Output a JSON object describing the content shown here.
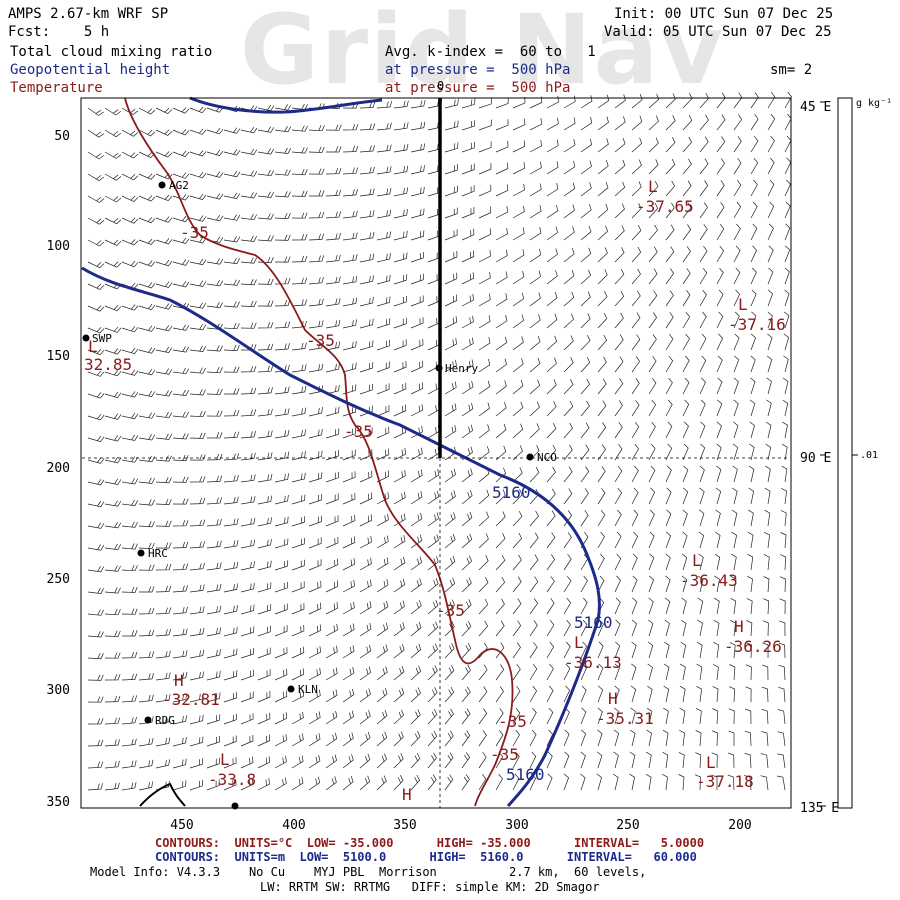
{
  "watermark": "Grid Nav",
  "header": {
    "model_line": "AMPS 2.67-km WRF SP",
    "fcst_line": "Fcst:    5 h",
    "init_line": "Init: 00 UTC Sun 07 Dec 25",
    "valid_line": "Valid: 05 UTC Sun 07 Dec 25",
    "field1": "Total cloud mixing ratio",
    "field2": "Geopotential height",
    "field3": "Temperature",
    "avg_line": "Avg. k-index =  60 to   1",
    "pressure_line1": "at pressure =  500 hPa",
    "pressure_line2": "at pressure =  500 hPa",
    "smoothing": "sm= 2"
  },
  "colors": {
    "height_contour": "#1c2a8a",
    "temperature_contour": "#8b1a1a",
    "barb": "#000000"
  },
  "axes": {
    "x_ticks": [
      "450",
      "400",
      "350",
      "300",
      "250",
      "200"
    ],
    "y_ticks": [
      "50",
      "100",
      "150",
      "200",
      "250",
      "300",
      "350"
    ],
    "right_ticks": [
      "45 E",
      "90 E",
      "135 E"
    ],
    "top_tick": "0"
  },
  "colorbar": {
    "units": "g kg⁻¹",
    "label": ".01"
  },
  "stations": [
    {
      "name": "AG2"
    },
    {
      "name": "SWP"
    },
    {
      "name": "Henry"
    },
    {
      "name": "NCO"
    },
    {
      "name": "HRC"
    },
    {
      "name": "KLN"
    },
    {
      "name": "RDG"
    }
  ],
  "extrema": [
    {
      "symbol": "L",
      "value": "-37.65"
    },
    {
      "symbol": "L",
      "value": "-37.16"
    },
    {
      "symbol": "L",
      "value": "32.85"
    },
    {
      "symbol": "L",
      "value": "-36.43"
    },
    {
      "symbol": "H",
      "value": "-36.26"
    },
    {
      "symbol": "L",
      "value": "-36.13"
    },
    {
      "symbol": "H",
      "value": "-35.31"
    },
    {
      "symbol": "H",
      "value": "-32.81"
    },
    {
      "symbol": "L",
      "value": "-33.8"
    },
    {
      "symbol": "L",
      "value": "-37.18"
    },
    {
      "symbol": "H",
      "value": ""
    }
  ],
  "contour_labels": {
    "temperature": [
      "-35",
      "-35",
      "-35",
      "-35",
      "-35",
      "-35"
    ],
    "height": [
      "5160",
      "5160",
      "5160"
    ]
  },
  "footer": {
    "temp_contours": "CONTOURS:  UNITS=°C  LOW= -35.000      HIGH= -35.000      INTERVAL=   5.0000",
    "height_contours": "CONTOURS:  UNITS=m  LOW=  5100.0      HIGH=  5160.0      INTERVAL=   60.000",
    "model_info": "Model Info: V4.3.3    No Cu    MYJ PBL  Morrison          2.7 km,  60 levels,",
    "physics": "LW: RRTM SW: RRTMG   DIFF: simple KM: 2D Smagor"
  }
}
